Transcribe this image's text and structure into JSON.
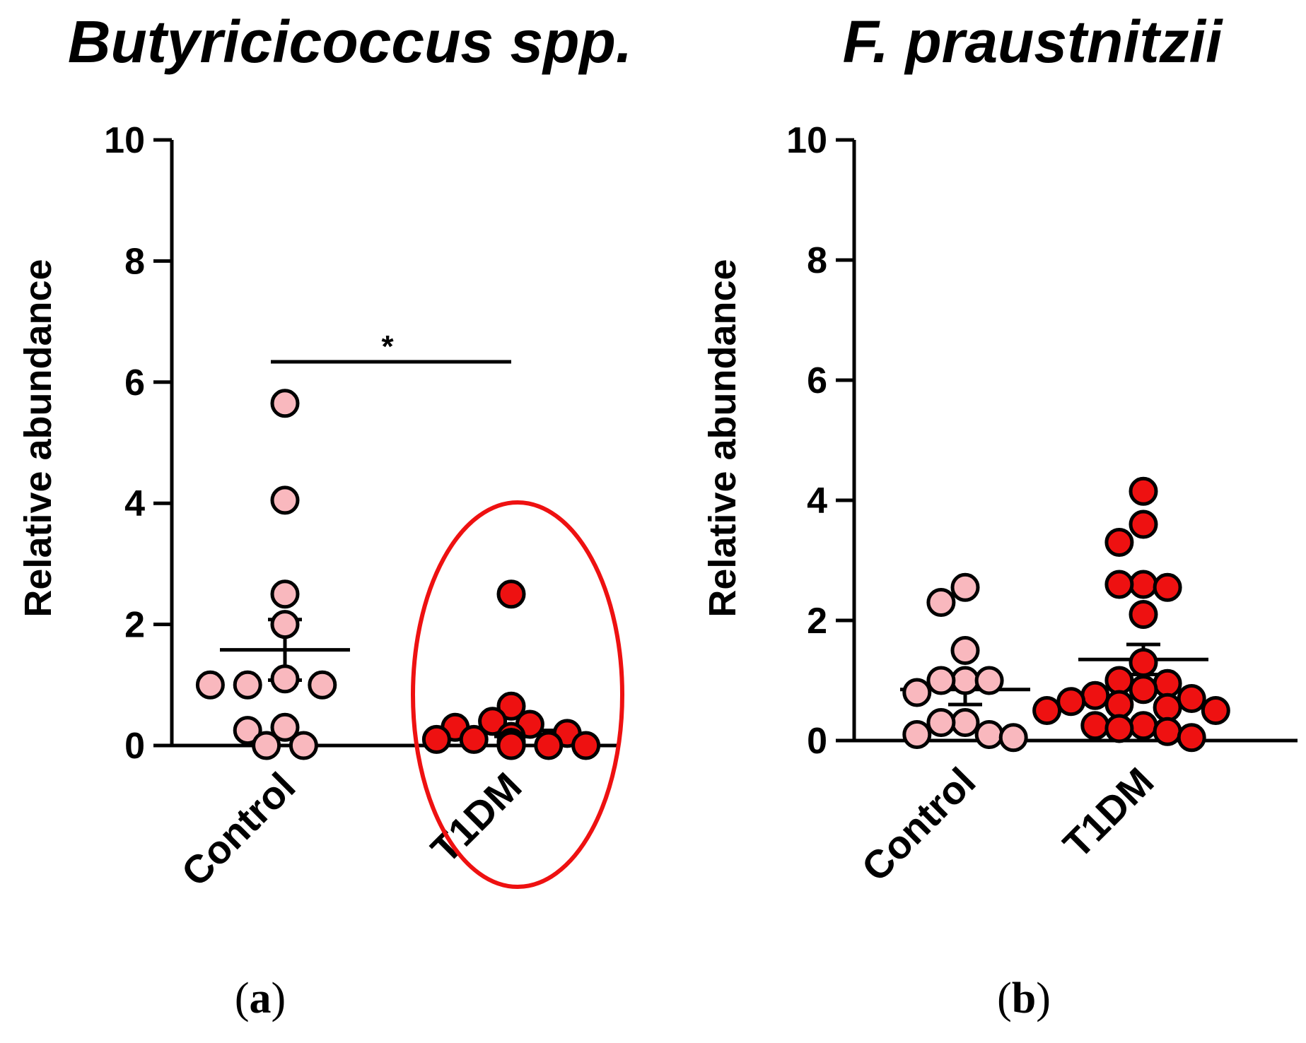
{
  "colors": {
    "control_fill": "#F9B8BE",
    "t1dm_fill": "#EE1111",
    "marker_stroke": "#000000",
    "highlight": "#EE1111"
  },
  "chart_data": [
    {
      "type": "scatter",
      "title": "Butyricicoccus spp.",
      "panel_label": "a",
      "ylabel": "Relative abundance",
      "ylim": [
        0,
        10
      ],
      "yticks": [
        0,
        2,
        4,
        6,
        8,
        10
      ],
      "categories": [
        "Control",
        "T1DM"
      ],
      "series": [
        {
          "name": "Control",
          "fill": "#F9B8BE",
          "values": [
            5.65,
            4.05,
            2.5,
            2.0,
            1.1,
            1.0,
            1.0,
            1.0,
            0.3,
            0.25,
            0.0,
            0.0
          ],
          "mean": 1.58,
          "sem": [
            1.08,
            2.08
          ]
        },
        {
          "name": "T1DM",
          "fill": "#EE1111",
          "values": [
            2.5,
            0.65,
            0.4,
            0.35,
            0.3,
            0.2,
            0.15,
            0.1,
            0.1,
            0.05,
            0.05,
            0.05,
            0.0,
            0.0,
            0.0,
            0.0
          ],
          "mean": 0.25,
          "sem": [
            0.15,
            0.35
          ],
          "highlighted": true
        }
      ],
      "significance": {
        "label": "*",
        "y": 6.35,
        "between": [
          "Control",
          "T1DM"
        ]
      }
    },
    {
      "type": "scatter",
      "title": "F. praustnitzii",
      "panel_label": "b",
      "ylabel": "Relative abundance",
      "ylim": [
        0,
        10
      ],
      "yticks": [
        0,
        2,
        4,
        6,
        8,
        10
      ],
      "categories": [
        "Control",
        "T1DM"
      ],
      "series": [
        {
          "name": "Control",
          "fill": "#F9B8BE",
          "values": [
            2.55,
            2.3,
            1.5,
            1.0,
            1.0,
            1.0,
            0.8,
            0.3,
            0.3,
            0.1,
            0.1,
            0.05
          ],
          "mean": 0.85,
          "sem": [
            0.6,
            1.1
          ]
        },
        {
          "name": "T1DM",
          "fill": "#EE1111",
          "values": [
            4.15,
            3.6,
            3.3,
            2.6,
            2.6,
            2.55,
            2.1,
            1.3,
            1.0,
            0.95,
            0.85,
            0.75,
            0.7,
            0.65,
            0.6,
            0.55,
            0.5,
            0.5,
            0.25,
            0.25,
            0.2,
            0.15,
            0.05
          ],
          "mean": 1.35,
          "sem": [
            1.1,
            1.6
          ]
        }
      ]
    }
  ]
}
